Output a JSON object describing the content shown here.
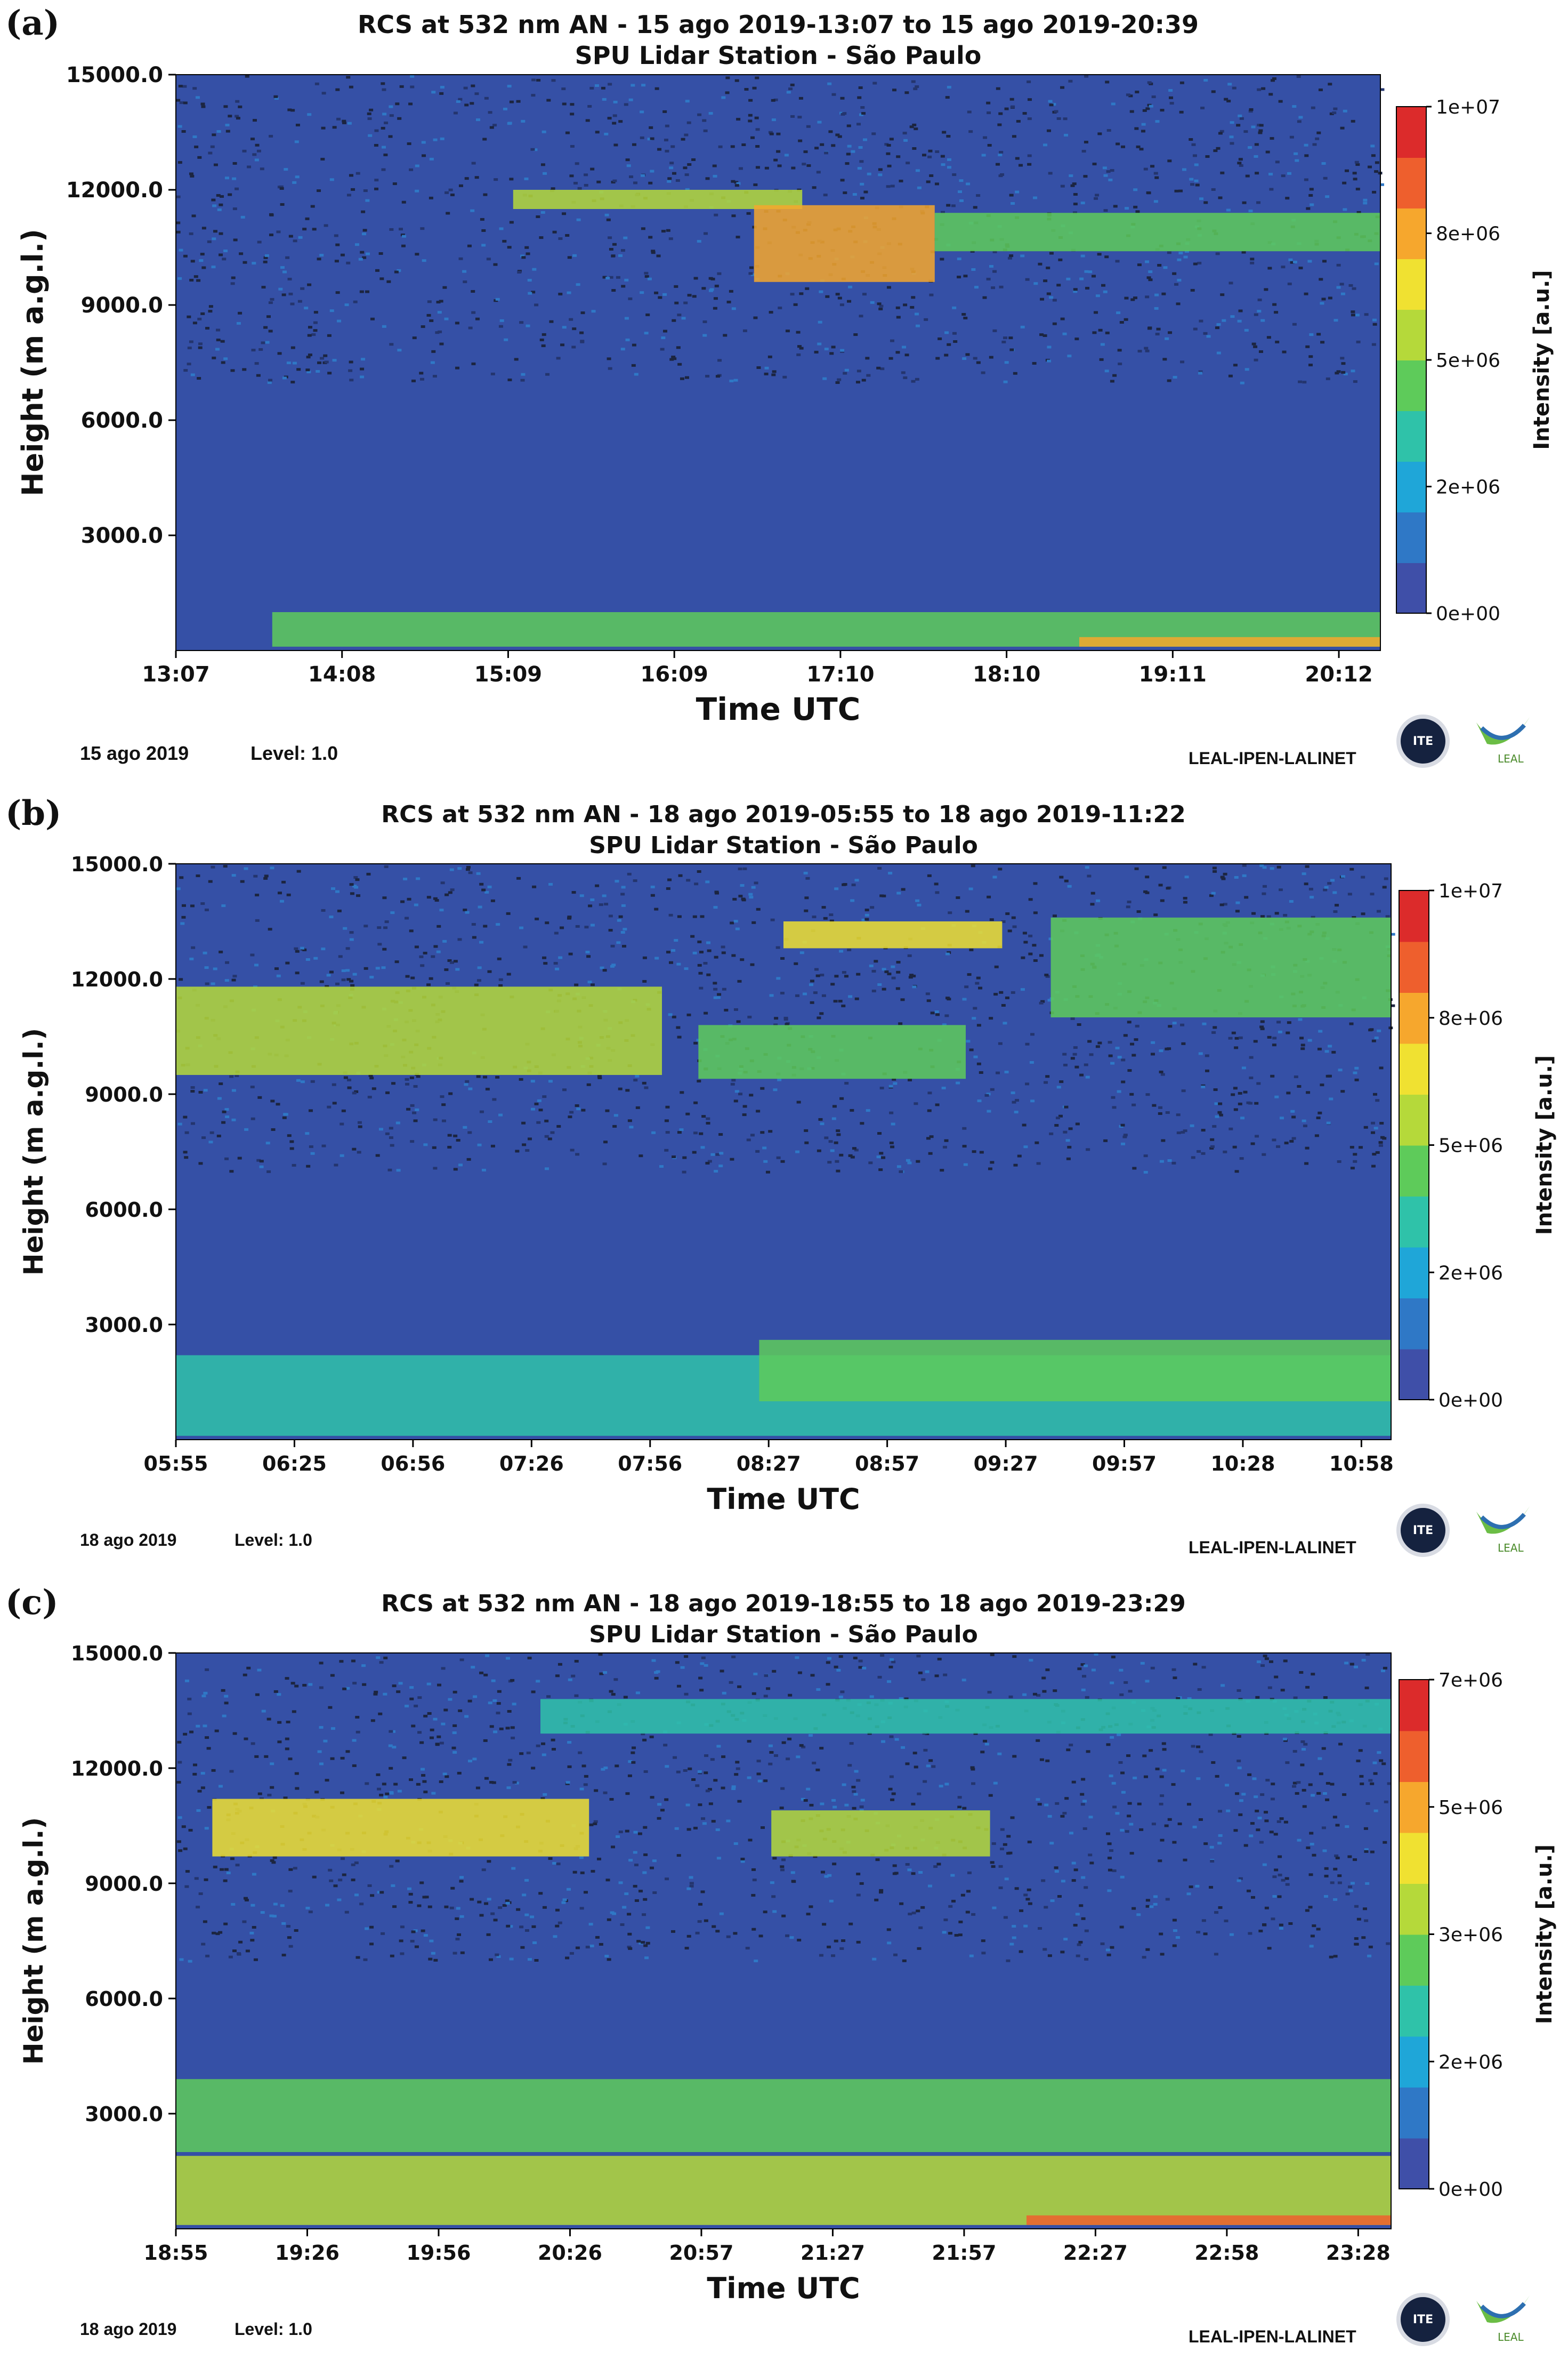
{
  "colorbar_colors": [
    "#3f4fa8",
    "#2f78c6",
    "#1fa6d8",
    "#2fc2a9",
    "#5ecb5a",
    "#b5d93a",
    "#f0e131",
    "#f6a72d",
    "#ee5f2d",
    "#dc2b2b"
  ],
  "logos": {
    "cite": "ITE",
    "leal": "LEAL"
  },
  "chart_data": [
    {
      "type": "heatmap",
      "panel_label": "(a)",
      "title": "RCS at 532 nm AN - 15 ago 2019-13:07 to 15 ago 2019-20:39",
      "subtitle": "SPU Lidar Station - São Paulo",
      "xlabel": "Time UTC",
      "ylabel": "Height (m a.g.l.)",
      "colorbar_label": "Intensity [a.u.]",
      "x_ticks": [
        "13:07",
        "14:08",
        "15:09",
        "16:09",
        "17:10",
        "18:10",
        "19:11",
        "20:12"
      ],
      "y_ticks": [
        "3000.0",
        "6000.0",
        "9000.0",
        "12000.0",
        "15000.0"
      ],
      "y_range": [
        0,
        15000
      ],
      "colorbar_ticks": [
        "0e+00",
        "2e+06",
        "5e+06",
        "8e+06",
        "1e+07"
      ],
      "color_range": [
        0,
        10000000
      ],
      "date_footer": "15 ago 2019",
      "level": "Level: 1.0",
      "network": "LEAL-IPEN-LALINET",
      "features": [
        {
          "desc": "boundary layer",
          "t0": 0.08,
          "t1": 1.0,
          "h0": 100,
          "h1": 1000,
          "v": 0.42
        },
        {
          "desc": "near-surface strong",
          "t0": 0.75,
          "t1": 1.0,
          "h0": 100,
          "h1": 350,
          "v": 0.75
        },
        {
          "desc": "cirrus",
          "t0": 0.28,
          "t1": 0.52,
          "h0": 11500,
          "h1": 12000,
          "v": 0.5
        },
        {
          "desc": "cirrus core",
          "t0": 0.48,
          "t1": 0.63,
          "h0": 9600,
          "h1": 11600,
          "v": 0.7
        },
        {
          "desc": "cirrus",
          "t0": 0.63,
          "t1": 1.0,
          "h0": 10400,
          "h1": 11400,
          "v": 0.45
        }
      ]
    },
    {
      "type": "heatmap",
      "panel_label": "(b)",
      "title": "RCS at 532 nm AN - 18 ago 2019-05:55 to 18 ago 2019-11:22",
      "subtitle": "SPU Lidar Station - São Paulo",
      "xlabel": "Time UTC",
      "ylabel": "Height (m a.g.l.)",
      "colorbar_label": "Intensity [a.u.]",
      "x_ticks": [
        "05:55",
        "06:25",
        "06:56",
        "07:26",
        "07:56",
        "08:27",
        "08:57",
        "09:27",
        "09:57",
        "10:28",
        "10:58"
      ],
      "y_ticks": [
        "3000.0",
        "6000.0",
        "9000.0",
        "12000.0",
        "15000.0"
      ],
      "y_range": [
        0,
        15000
      ],
      "colorbar_ticks": [
        "0e+00",
        "2e+06",
        "5e+06",
        "8e+06",
        "1e+07"
      ],
      "color_range": [
        0,
        10000000
      ],
      "date_footer": "18 ago 2019",
      "level": "Level: 1.0",
      "network": "LEAL-IPEN-LALINET",
      "features": [
        {
          "desc": "boundary layer",
          "t0": 0.0,
          "t1": 1.0,
          "h0": 100,
          "h1": 2200,
          "v": 0.36
        },
        {
          "desc": "boundary layer upper",
          "t0": 0.48,
          "t1": 1.0,
          "h0": 1000,
          "h1": 2600,
          "v": 0.42
        },
        {
          "desc": "cirrus",
          "t0": 0.0,
          "t1": 0.4,
          "h0": 9500,
          "h1": 11800,
          "v": 0.5
        },
        {
          "desc": "cirrus",
          "t0": 0.43,
          "t1": 0.65,
          "h0": 9400,
          "h1": 10800,
          "v": 0.45
        },
        {
          "desc": "cirrus",
          "t0": 0.5,
          "t1": 0.68,
          "h0": 12800,
          "h1": 13500,
          "v": 0.65
        },
        {
          "desc": "cirrus",
          "t0": 0.72,
          "t1": 1.0,
          "h0": 11000,
          "h1": 13600,
          "v": 0.45
        }
      ]
    },
    {
      "type": "heatmap",
      "panel_label": "(c)",
      "title": "RCS at 532 nm AN - 18 ago 2019-18:55 to 18 ago 2019-23:29",
      "subtitle": "SPU Lidar Station - São Paulo",
      "xlabel": "Time UTC",
      "ylabel": "Height (m a.g.l.)",
      "colorbar_label": "Intensity [a.u.]",
      "x_ticks": [
        "18:55",
        "19:26",
        "19:56",
        "20:26",
        "20:57",
        "21:27",
        "21:57",
        "22:27",
        "22:58",
        "23:28"
      ],
      "y_ticks": [
        "3000.0",
        "6000.0",
        "9000.0",
        "12000.0",
        "15000.0"
      ],
      "y_range": [
        0,
        15000
      ],
      "colorbar_ticks": [
        "0e+00",
        "2e+06",
        "3e+06",
        "5e+06",
        "7e+06"
      ],
      "color_range": [
        0,
        7000000
      ],
      "date_footer": "18 ago 2019",
      "level": "Level: 1.0",
      "network": "LEAL-IPEN-LALINET",
      "features": [
        {
          "desc": "residual layer",
          "t0": 0.0,
          "t1": 1.0,
          "h0": 2000,
          "h1": 3900,
          "v": 0.42
        },
        {
          "desc": "lower aerosol layer",
          "t0": 0.0,
          "t1": 1.0,
          "h0": 100,
          "h1": 1900,
          "v": 0.55
        },
        {
          "desc": "near-surface strong",
          "t0": 0.7,
          "t1": 1.0,
          "h0": 100,
          "h1": 350,
          "v": 0.8
        },
        {
          "desc": "cirrus",
          "t0": 0.03,
          "t1": 0.34,
          "h0": 9700,
          "h1": 11200,
          "v": 0.6
        },
        {
          "desc": "cirrus",
          "t0": 0.49,
          "t1": 0.67,
          "h0": 9700,
          "h1": 10900,
          "v": 0.5
        },
        {
          "desc": "thin upper layer",
          "t0": 0.3,
          "t1": 1.0,
          "h0": 12900,
          "h1": 13800,
          "v": 0.35
        }
      ]
    }
  ]
}
